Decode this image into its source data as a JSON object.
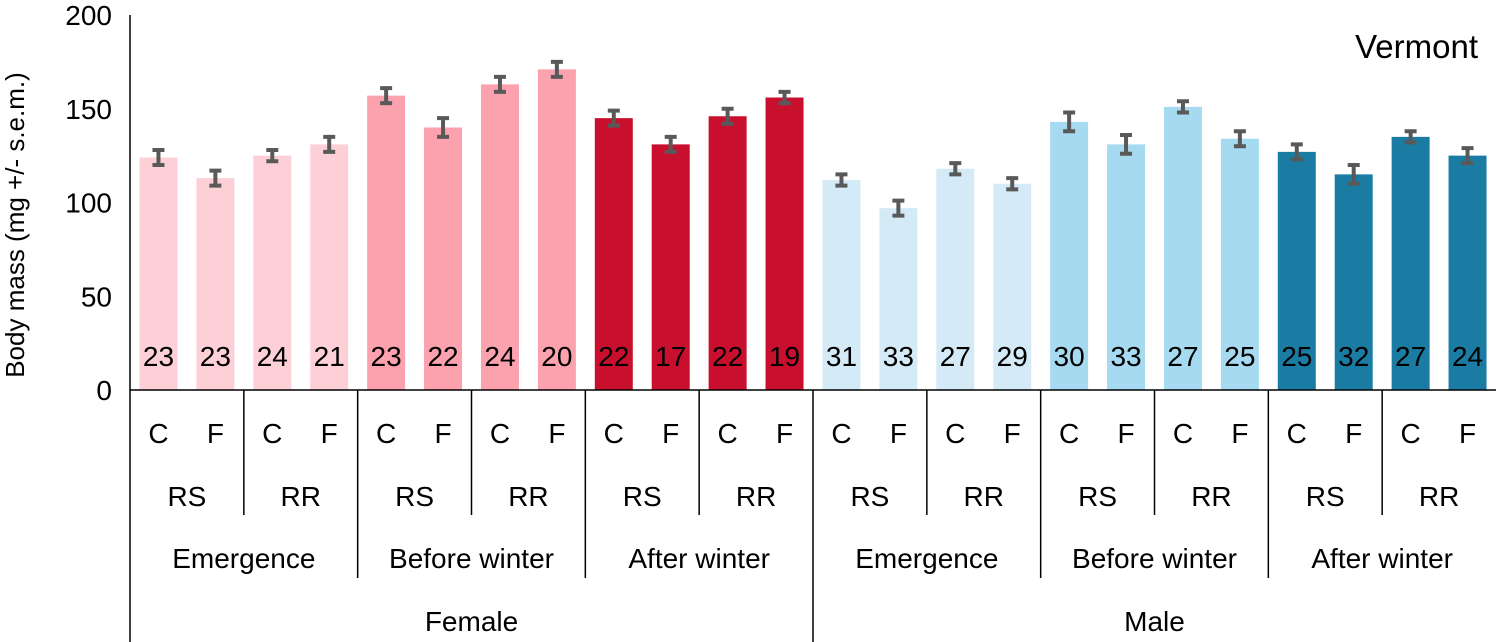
{
  "chart_data": {
    "type": "bar",
    "title": "Vermont",
    "ylabel": "Body mass (mg +/- s.e.m.)",
    "ylim": [
      0,
      200
    ],
    "yticks": [
      0,
      50,
      100,
      150,
      200
    ],
    "grid": false,
    "legend": "none",
    "categories": [
      "Female Emergence RS C",
      "Female Emergence RS F",
      "Female Emergence RR C",
      "Female Emergence RR F",
      "Female Before winter RS C",
      "Female Before winter RS F",
      "Female Before winter RR C",
      "Female Before winter RR F",
      "Female After winter RS C",
      "Female After winter RS F",
      "Female After winter RR C",
      "Female After winter RR F",
      "Male Emergence RS C",
      "Male Emergence RS F",
      "Male Emergence RR C",
      "Male Emergence RR F",
      "Male Before winter RS C",
      "Male Before winter RS F",
      "Male Before winter RR C",
      "Male Before winter RR F",
      "Male After winter RS C",
      "Male After winter RS F",
      "Male After winter RR C",
      "Male After winter RR F"
    ],
    "values": [
      124,
      113,
      125,
      131,
      157,
      140,
      163,
      171,
      145,
      131,
      146,
      156,
      112,
      97,
      118,
      110,
      143,
      131,
      151,
      134,
      127,
      115,
      135,
      125
    ],
    "errors": [
      4,
      4,
      3,
      4,
      4,
      5,
      4,
      4,
      4,
      4,
      4,
      3,
      3,
      4,
      3,
      3,
      5,
      5,
      3,
      4,
      4,
      5,
      3,
      4
    ],
    "sample_sizes": [
      "23",
      "23",
      "24",
      "21",
      "23",
      "22",
      "24",
      "20",
      "22",
      "17",
      "22",
      "19",
      "31",
      "33",
      "27",
      "29",
      "30",
      "33",
      "27",
      "25",
      "25",
      "32",
      "27",
      "24"
    ],
    "bar_colors": [
      "#fdd0d8",
      "#fdd0d8",
      "#fdd0d8",
      "#fdd0d8",
      "#fca1ae",
      "#fca1ae",
      "#fca1ae",
      "#fca1ae",
      "#c8102e",
      "#c8102e",
      "#c8102e",
      "#c8102e",
      "#d4ebf7",
      "#d4ebf7",
      "#d4ebf7",
      "#d4ebf7",
      "#a6daf0",
      "#a6daf0",
      "#a6daf0",
      "#a6daf0",
      "#1a7ca3",
      "#1a7ca3",
      "#1a7ca3",
      "#1a7ca3"
    ],
    "error_color": "#595959",
    "axis_labels": {
      "treatment": [
        "C",
        "F",
        "C",
        "F",
        "C",
        "F",
        "C",
        "F",
        "C",
        "F",
        "C",
        "F",
        "C",
        "F",
        "C",
        "F",
        "C",
        "F",
        "C",
        "F",
        "C",
        "F",
        "C",
        "F"
      ],
      "line": [
        "RS",
        "RR",
        "RS",
        "RR",
        "RS",
        "RR",
        "RS",
        "RR",
        "RS",
        "RR",
        "RS",
        "RR"
      ],
      "period": [
        "Emergence",
        "Before winter",
        "After winter",
        "Emergence",
        "Before winter",
        "After winter"
      ],
      "sex": [
        "Female",
        "Male"
      ]
    }
  }
}
